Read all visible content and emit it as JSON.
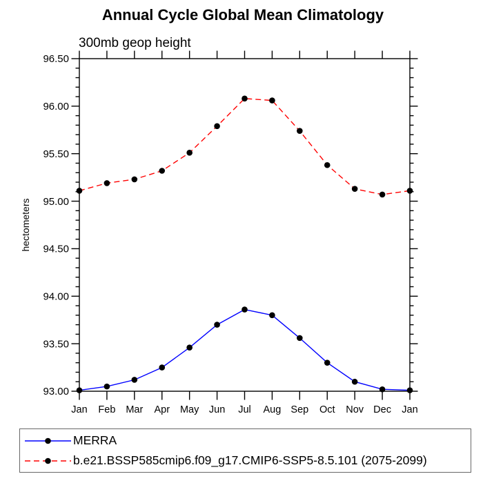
{
  "title": "Annual Cycle Global Mean Climatology",
  "subtitle": "300mb geop height",
  "y_axis_label": "hectometers",
  "chart_data": {
    "type": "line",
    "title": "Annual Cycle Global Mean Climatology",
    "subtitle": "300mb geop height",
    "xlabel": "",
    "ylabel": "hectometers",
    "x_categories": [
      "Jan",
      "Feb",
      "Mar",
      "Apr",
      "May",
      "Jun",
      "Jul",
      "Aug",
      "Sep",
      "Oct",
      "Nov",
      "Dec",
      "Jan"
    ],
    "ylim": [
      93.0,
      96.5
    ],
    "y_major_step": 0.5,
    "y_minor_step": 0.1,
    "y_tick_labels": [
      "93.00",
      "93.50",
      "94.00",
      "94.50",
      "95.00",
      "95.50",
      "96.00",
      "96.50"
    ],
    "grid": false,
    "legend_position": "bottom",
    "axis_color": "#000000",
    "marker_color": "#000000",
    "series": [
      {
        "name": "MERRA",
        "color": "#0000ff",
        "line_style": "solid",
        "marker": "circle",
        "values": [
          93.01,
          93.05,
          93.12,
          93.25,
          93.46,
          93.7,
          93.86,
          93.8,
          93.56,
          93.3,
          93.1,
          93.02,
          93.01
        ]
      },
      {
        "name": "b.e21.BSSP585cmip6.f09_g17.CMIP6-SSP5-8.5.101 (2075-2099)",
        "color": "#ff0000",
        "line_style": "dashed",
        "marker": "circle",
        "values": [
          95.11,
          95.19,
          95.23,
          95.32,
          95.51,
          95.79,
          96.08,
          96.06,
          95.74,
          95.38,
          95.13,
          95.07,
          95.11
        ]
      }
    ]
  }
}
